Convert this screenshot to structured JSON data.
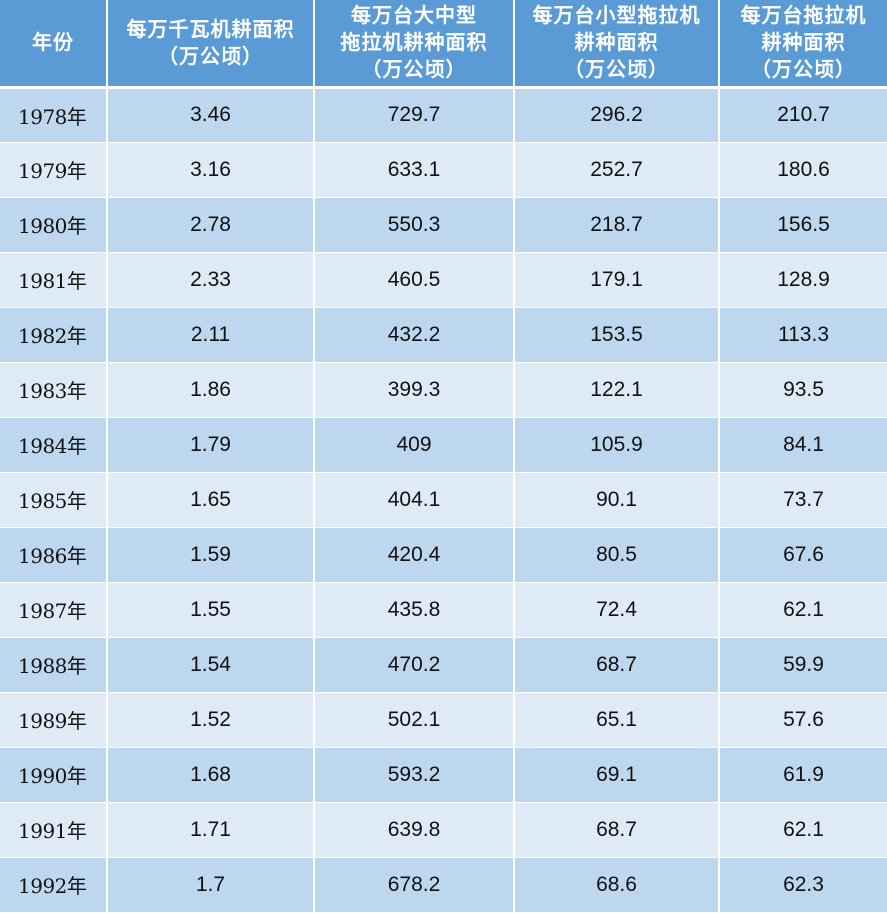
{
  "colors": {
    "header_bg": "#5b9bd5",
    "header_text": "#ffffff",
    "row_band_dark": "#bdd7ee",
    "row_band_light": "#deebf7"
  },
  "columns": [
    {
      "lines": [
        "年份"
      ]
    },
    {
      "lines": [
        "每万千瓦机耕面积",
        "（万公顷）"
      ]
    },
    {
      "lines": [
        "每万台大中型",
        "拖拉机耕种面积",
        "（万公顷）"
      ]
    },
    {
      "lines": [
        "每万台小型拖拉机",
        "耕种面积",
        "（万公顷）"
      ]
    },
    {
      "lines": [
        "每万台拖拉机",
        "耕种面积",
        "（万公顷）"
      ]
    }
  ],
  "rows": [
    [
      "1978年",
      "3.46",
      "729.7",
      "296.2",
      "210.7"
    ],
    [
      "1979年",
      "3.16",
      "633.1",
      "252.7",
      "180.6"
    ],
    [
      "1980年",
      "2.78",
      "550.3",
      "218.7",
      "156.5"
    ],
    [
      "1981年",
      "2.33",
      "460.5",
      "179.1",
      "128.9"
    ],
    [
      "1982年",
      "2.11",
      "432.2",
      "153.5",
      "113.3"
    ],
    [
      "1983年",
      "1.86",
      "399.3",
      "122.1",
      "93.5"
    ],
    [
      "1984年",
      "1.79",
      "409",
      "105.9",
      "84.1"
    ],
    [
      "1985年",
      "1.65",
      "404.1",
      "90.1",
      "73.7"
    ],
    [
      "1986年",
      "1.59",
      "420.4",
      "80.5",
      "67.6"
    ],
    [
      "1987年",
      "1.55",
      "435.8",
      "72.4",
      "62.1"
    ],
    [
      "1988年",
      "1.54",
      "470.2",
      "68.7",
      "59.9"
    ],
    [
      "1989年",
      "1.52",
      "502.1",
      "65.1",
      "57.6"
    ],
    [
      "1990年",
      "1.68",
      "593.2",
      "69.1",
      "61.9"
    ],
    [
      "1991年",
      "1.71",
      "639.8",
      "68.7",
      "62.1"
    ],
    [
      "1992年",
      "1.7",
      "678.2",
      "68.6",
      "62.3"
    ]
  ]
}
